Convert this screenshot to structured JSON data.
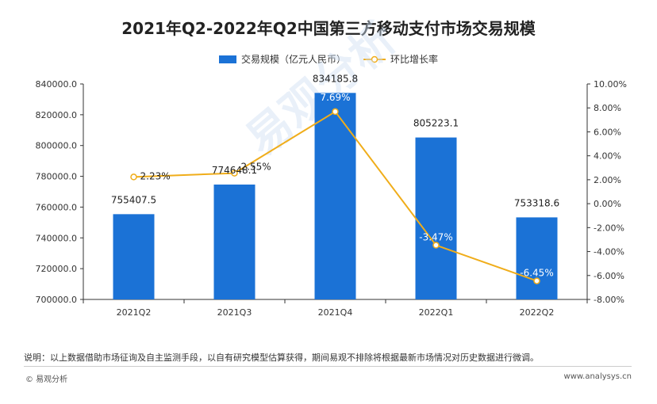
{
  "chart_data": {
    "type": "bar",
    "title": "2021年Q2-2022年Q2中国第三方移动支付市场交易规模",
    "categories": [
      "2021Q2",
      "2021Q3",
      "2021Q4",
      "2022Q1",
      "2022Q2"
    ],
    "series": [
      {
        "name": "交易规模（亿元人民币）",
        "type": "bar",
        "axis": "left",
        "values": [
          755407.5,
          774648.1,
          834185.8,
          805223.1,
          753318.6
        ],
        "labels": [
          "755407.5",
          "774648.1",
          "834185.8",
          "805223.1",
          "753318.6"
        ]
      },
      {
        "name": "环比增长率",
        "type": "line",
        "axis": "right",
        "values": [
          2.23,
          2.55,
          7.69,
          -3.47,
          -6.45
        ],
        "labels": [
          "2.23%",
          "2.55%",
          "7.69%",
          "-3.47%",
          "-6.45%"
        ]
      }
    ],
    "left_axis": {
      "ylim": [
        700000,
        840000
      ],
      "ticks": [
        700000,
        720000,
        740000,
        760000,
        780000,
        800000,
        820000,
        840000
      ],
      "tick_labels": [
        "700000.0",
        "720000.0",
        "740000.0",
        "760000.0",
        "780000.0",
        "800000.0",
        "820000.0",
        "840000.0"
      ]
    },
    "right_axis": {
      "ylim": [
        -8,
        10
      ],
      "ticks": [
        -8,
        -6,
        -4,
        -2,
        0,
        2,
        4,
        6,
        8,
        10
      ],
      "tick_labels": [
        "-8.00%",
        "-6.00%",
        "-4.00%",
        "-2.00%",
        "0.00%",
        "2.00%",
        "4.00%",
        "6.00%",
        "8.00%",
        "10.00%"
      ]
    },
    "legend_position": "top",
    "grid": false,
    "colors": {
      "bar": "#1b72d6",
      "line": "#f0ad1a"
    }
  },
  "footnote": "说明：以上数据借助市场征询及自主监测手段，以自有研究模型估算获得，期间易观不排除将根据最新市场情况对历史数据进行微调。",
  "footer": {
    "brand": "© 易观分析",
    "site": "www.analysys.cn"
  },
  "watermark": "易观分析"
}
